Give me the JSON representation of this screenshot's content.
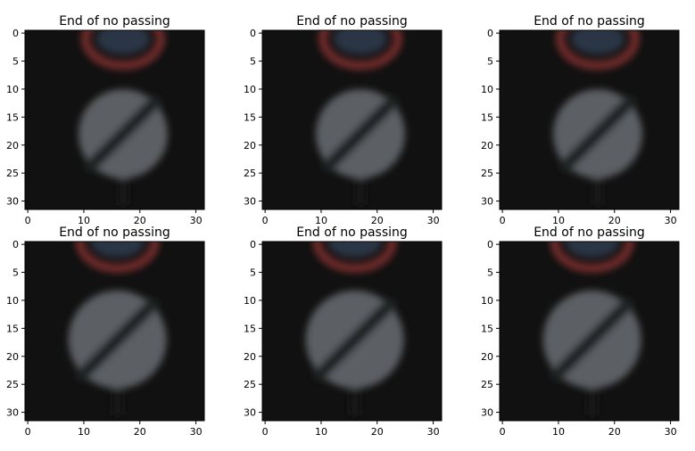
{
  "panels": [
    {
      "title": "End of no passing",
      "image_variant": "sign-upper",
      "brightness": 1.0
    },
    {
      "title": "End of no passing",
      "image_variant": "sign-upper",
      "brightness": 1.05
    },
    {
      "title": "End of no passing",
      "image_variant": "sign-upper",
      "brightness": 1.0
    },
    {
      "title": "End of no passing",
      "image_variant": "sign-lower",
      "brightness": 1.0
    },
    {
      "title": "End of no passing",
      "image_variant": "sign-lower",
      "brightness": 1.05
    },
    {
      "title": "End of no passing",
      "image_variant": "sign-lower",
      "brightness": 1.0
    }
  ],
  "axes": {
    "x_ticks": [
      "0",
      "10",
      "20",
      "30"
    ],
    "y_ticks": [
      "0",
      "5",
      "10",
      "15",
      "20",
      "25",
      "30"
    ],
    "x_tick_values": [
      0,
      10,
      20,
      30
    ],
    "y_tick_values": [
      0,
      5,
      10,
      15,
      20,
      25,
      30
    ],
    "extent": [
      -0.5,
      31.5
    ]
  },
  "colors": {
    "background": "#111111",
    "sign_face": "#5b5e63",
    "sign_stripe": "#1e2224",
    "sign_ring": "#722a2a",
    "text": "#000000",
    "axis": "#000000"
  }
}
